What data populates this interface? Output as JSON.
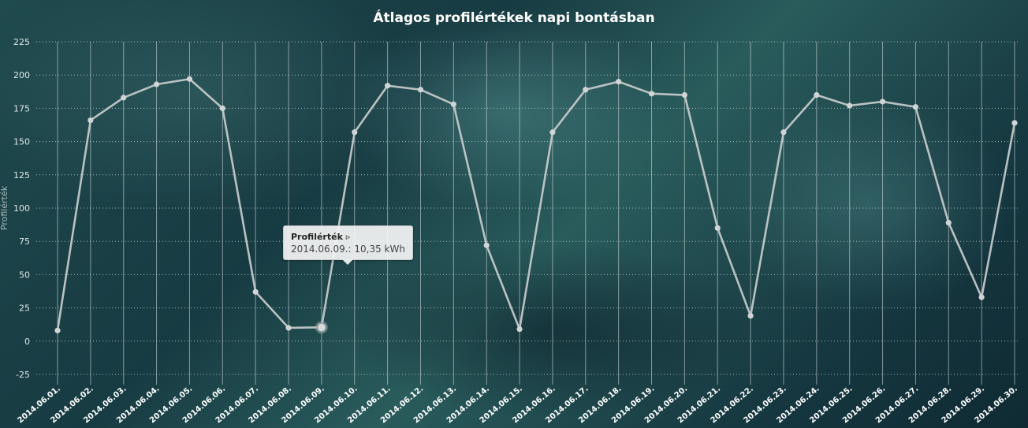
{
  "chart_data": {
    "type": "line",
    "title": "Átlagos profilértékek napi bontásban",
    "ylabel": "Profilérték",
    "ylim": [
      -25,
      225
    ],
    "yticks": [
      -25,
      0,
      25,
      50,
      75,
      100,
      125,
      150,
      175,
      200,
      225
    ],
    "grid": true,
    "categories": [
      "2014.06.01.",
      "2014.06.02.",
      "2014.06.03.",
      "2014.06.04.",
      "2014.06.05.",
      "2014.06.06.",
      "2014.06.07.",
      "2014.06.08.",
      "2014.06.09.",
      "2014.06.10.",
      "2014.06.11.",
      "2014.06.12.",
      "2014.06.13.",
      "2014.06.14.",
      "2014.06.15.",
      "2014.06.16.",
      "2014.06.17.",
      "2014.06.18.",
      "2014.06.19.",
      "2014.06.20.",
      "2014.06.21.",
      "2014.06.22.",
      "2014.06.23.",
      "2014.06.24.",
      "2014.06.25.",
      "2014.06.26.",
      "2014.06.27.",
      "2014.06.28.",
      "2014.06.29.",
      "2014.06.30."
    ],
    "series": [
      {
        "name": "Profilérték",
        "values": [
          8,
          166,
          183,
          193,
          197,
          175,
          37,
          10,
          10.35,
          157,
          192,
          189,
          178,
          72,
          9,
          157,
          189,
          195,
          186,
          185,
          85,
          19,
          157,
          185,
          177,
          180,
          176,
          89,
          33,
          164
        ]
      }
    ],
    "colors": {
      "line": "#c3c8c8",
      "grid": "#c9d3d3"
    },
    "highlight_index": 8,
    "tooltip": {
      "series_label": "Profilérték ▹",
      "text": "2014.06.09.: 10,35 kWh"
    }
  }
}
